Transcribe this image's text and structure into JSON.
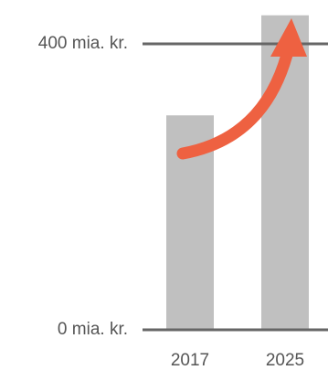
{
  "chart_data": {
    "type": "bar",
    "categories": [
      "2017",
      "2025"
    ],
    "values": [
      300,
      440
    ],
    "color": "#c0c0c0",
    "ylim": [
      0,
      450
    ],
    "yticks": [
      {
        "value": 0,
        "label": "0 mia. kr."
      },
      {
        "value": 400,
        "label": "400 mia. kr."
      }
    ],
    "grid": true
  }
}
